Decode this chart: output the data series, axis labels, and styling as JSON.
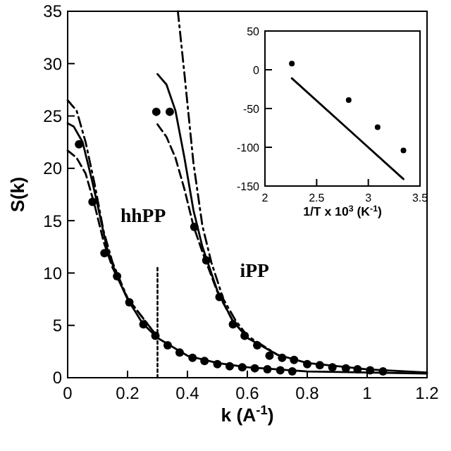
{
  "chart_data": [
    {
      "type": "line",
      "xlabel": "k (A$^{-1}$)",
      "ylabel": "S(k)",
      "xlim": [
        0,
        1.2
      ],
      "ylim": [
        0,
        35
      ],
      "xticks": [
        0,
        0.2,
        0.4,
        0.6,
        0.8,
        1,
        1.2
      ],
      "yticks": [
        0,
        5,
        10,
        15,
        20,
        25,
        30,
        35
      ],
      "annotations": [
        "hhPP",
        "iPP"
      ],
      "series": [
        {
          "type": "scatter",
          "color": "#000000",
          "marker": "circle",
          "x": [
            0.038,
            0.083,
            0.123,
            0.165,
            0.206,
            0.253,
            0.293,
            0.334,
            0.374,
            0.417,
            0.457,
            0.5,
            0.541,
            0.583,
            0.625,
            0.667,
            0.71,
            0.75
          ],
          "values": [
            22.3,
            16.8,
            11.9,
            9.7,
            7.2,
            5.1,
            4,
            3.1,
            2.4,
            1.9,
            1.6,
            1.3,
            1.1,
            1.0,
            0.9,
            0.8,
            0.7,
            0.6
          ]
        },
        {
          "color": "#000000",
          "line_style": "solid",
          "x": [
            0,
            0.02,
            0.05,
            0.08,
            0.1,
            0.13,
            0.16,
            0.2,
            0.25,
            0.3,
            0.4,
            0.5,
            0.6,
            0.8,
            1.0,
            1.2
          ],
          "values": [
            24.3,
            24,
            22.5,
            19,
            16.5,
            12.5,
            10,
            7.5,
            5.2,
            3.8,
            2.1,
            1.4,
            1.0,
            0.6,
            0.5,
            0.4
          ]
        },
        {
          "color": "#000000",
          "line_style": "dashed",
          "x": [
            0,
            0.03,
            0.06,
            0.09,
            0.12,
            0.15,
            0.2,
            0.3
          ],
          "values": [
            21.7,
            21,
            19.5,
            16.5,
            13,
            10.5,
            7.6,
            3.9
          ]
        },
        {
          "color": "#000000",
          "line_style": "dashdot",
          "x": [
            0,
            0.03,
            0.06,
            0.09,
            0.12,
            0.15,
            0.2,
            0.3
          ],
          "values": [
            26.5,
            25.5,
            22.5,
            18.5,
            14,
            11,
            7.6,
            3.9
          ]
        },
        {
          "type": "scatter",
          "color": "#000000",
          "marker": "circle",
          "x": [
            0.296,
            0.341,
            0.423,
            0.463,
            0.507,
            0.552,
            0.591,
            0.633,
            0.674,
            0.716,
            0.756,
            0.8,
            0.842,
            0.884,
            0.929,
            0.968,
            1.01,
            1.053
          ],
          "values": [
            25.4,
            25.4,
            14.4,
            11.2,
            7.7,
            5.1,
            4,
            3.1,
            2.1,
            1.9,
            1.7,
            1.3,
            1.2,
            1.0,
            0.9,
            0.8,
            0.7,
            0.6
          ]
        },
        {
          "color": "#000000",
          "line_style": "solid",
          "x": [
            0.3,
            0.33,
            0.36,
            0.39,
            0.42,
            0.45,
            0.5,
            0.55,
            0.6,
            0.7,
            0.8,
            1.0,
            1.2
          ],
          "values": [
            29,
            28,
            25.5,
            21,
            16,
            12.5,
            8.3,
            5.5,
            3.8,
            2.2,
            1.4,
            0.8,
            0.5
          ]
        },
        {
          "color": "#000000",
          "line_style": "dashed",
          "x": [
            0.3,
            0.33,
            0.36,
            0.39,
            0.42,
            0.45,
            0.5,
            0.55,
            0.6
          ],
          "values": [
            24.2,
            23,
            21,
            18,
            14.5,
            12,
            8.2,
            5.5,
            3.8
          ]
        },
        {
          "color": "#000000",
          "line_style": "dashdot",
          "x": [
            0.368,
            0.39,
            0.42,
            0.45,
            0.48,
            0.52,
            0.56,
            0.6,
            0.7
          ],
          "values": [
            35,
            29,
            20.5,
            14.5,
            11,
            7.5,
            5.5,
            4,
            2.2
          ]
        },
        {
          "color": "#000000",
          "line_style": "dotted",
          "x": [
            0.3,
            0.3
          ],
          "values": [
            0,
            10.5
          ]
        }
      ]
    },
    {
      "type": "scatter",
      "xlabel": "1/T x 10$^{3}$ (K$^{-1}$)",
      "xlim": [
        2,
        3.5
      ],
      "ylim": [
        -150,
        50
      ],
      "xticks": [
        2,
        2.5,
        3,
        3.5
      ],
      "yticks": [
        -150,
        -100,
        -50,
        0,
        50
      ],
      "series": [
        {
          "color": "#000000",
          "marker": "circle",
          "x": [
            2.26,
            2.81,
            3.09,
            3.34
          ],
          "values": [
            8,
            -39,
            -74,
            -104
          ]
        },
        {
          "type": "line",
          "color": "#000000",
          "line_style": "solid",
          "x": [
            2.26,
            3.34
          ],
          "values": [
            -11,
            -141
          ]
        }
      ]
    }
  ]
}
